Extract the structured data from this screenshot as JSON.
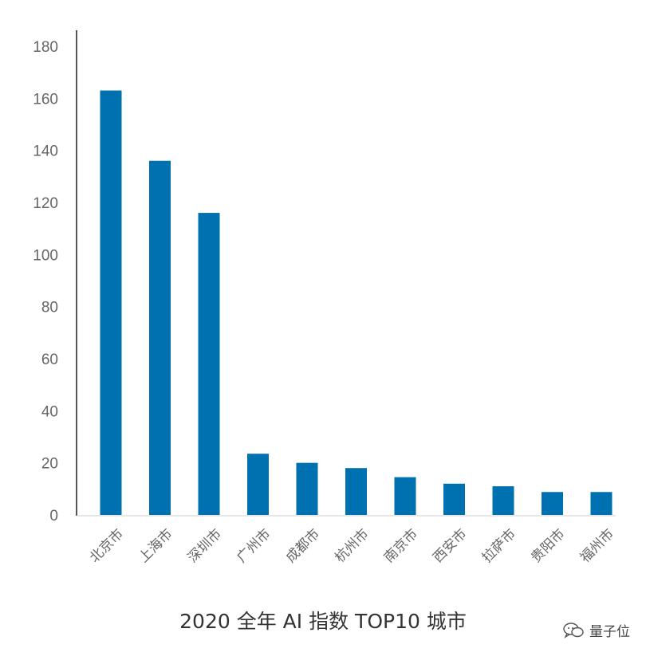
{
  "chart_data": {
    "type": "bar",
    "title": "2020 全年 AI 指数 TOP10 城市",
    "categories": [
      "北京市",
      "上海市",
      "深圳市",
      "广州市",
      "成都市",
      "杭州市",
      "南京市",
      "西安市",
      "拉萨市",
      "贵阳市",
      "福州市"
    ],
    "values": [
      163,
      136,
      116,
      23.5,
      20,
      18,
      14.5,
      12,
      11,
      8.8,
      8.8
    ],
    "yticks": [
      0,
      20,
      40,
      60,
      80,
      100,
      120,
      140,
      160,
      180
    ],
    "ylim": [
      0,
      180
    ],
    "xlabel": "",
    "ylabel": "",
    "grid": false,
    "bar_color": "#0071b0"
  },
  "watermark": {
    "text": "量子位",
    "icon": "wechat-icon"
  }
}
